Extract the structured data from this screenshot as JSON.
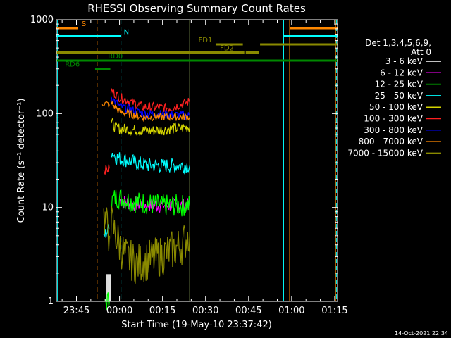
{
  "chart_data": {
    "type": "line",
    "title": "RHESSI Observing Summary Count Rates",
    "xlabel": "Start Time (19-May-10 23:37:42)",
    "ylabel": "Count Rate (s⁻¹ detector⁻¹)",
    "y_scale": "log",
    "ylim": [
      1,
      1000
    ],
    "xlim_minutes_after_2340": [
      -2,
      96
    ],
    "x_tick_labels": [
      "23:45",
      "00:00",
      "00:15",
      "00:30",
      "00:45",
      "01:00",
      "01:15"
    ],
    "x_tick_minutes": [
      5,
      20,
      35,
      50,
      65,
      80,
      95
    ],
    "y_tick_labels": [
      "1",
      "10",
      "100",
      "1000"
    ],
    "y_tick_values": [
      1,
      10,
      100,
      1000
    ],
    "legend_header": [
      "Det 1,3,4,5,6,9,",
      "Att 0"
    ],
    "legend_placement": "right",
    "series": [
      {
        "name": "3 - 6 keV",
        "color": "#ffffff",
        "segments": [
          [
            [
              15.5,
              1.95
            ],
            [
              17.0,
              1.95
            ]
          ]
        ],
        "noise": 0.0,
        "spiky": true
      },
      {
        "name": "6 - 12 keV",
        "color": "#ff00ff",
        "segments": [
          [
            [
              20.0,
              12.0
            ],
            [
              24.0,
              11.0
            ],
            [
              35.0,
              10.5
            ],
            [
              44.5,
              10.5
            ]
          ]
        ],
        "noise": 0.08
      },
      {
        "name": "12 - 25 keV",
        "color": "#00ff00",
        "segments": [
          [
            [
              15.0,
              1.0
            ],
            [
              16.5,
              1.0
            ]
          ],
          [
            [
              17.0,
              11.5
            ],
            [
              19.0,
              13.0
            ],
            [
              25.0,
              11.5
            ],
            [
              35.0,
              10.5
            ],
            [
              44.5,
              10.5
            ]
          ]
        ],
        "noise": 0.12
      },
      {
        "name": "25 - 50 keV",
        "color": "#00ffff",
        "segments": [
          [
            [
              14.5,
              5.0
            ],
            [
              16.5,
              6.0
            ]
          ],
          [
            [
              17.0,
              40.0
            ],
            [
              19.0,
              34.0
            ],
            [
              30.0,
              28.0
            ],
            [
              44.5,
              28.0
            ]
          ]
        ],
        "noise": 0.08
      },
      {
        "name": "50 - 100 keV",
        "color": "#d4d400",
        "segments": [
          [
            [
              17.0,
              80.0
            ],
            [
              19.0,
              70.0
            ],
            [
              30.0,
              65.0
            ],
            [
              44.5,
              72.0
            ]
          ]
        ],
        "noise": 0.06
      },
      {
        "name": "100 - 300 keV",
        "color": "#ff2020",
        "segments": [
          [
            [
              14.5,
              25.0
            ],
            [
              16.5,
              26.0
            ]
          ],
          [
            [
              17.0,
              175.0
            ],
            [
              20.0,
              150.0
            ],
            [
              28.0,
              118.0
            ],
            [
              38.0,
              115.0
            ],
            [
              44.5,
              135.0
            ]
          ]
        ],
        "noise": 0.05
      },
      {
        "name": "300 - 800 keV",
        "color": "#0000ff",
        "segments": [
          [
            [
              17.0,
              150.0
            ],
            [
              20.0,
              120.0
            ],
            [
              28.0,
              100.0
            ],
            [
              44.5,
              95.0
            ]
          ]
        ],
        "noise": 0.05
      },
      {
        "name": "800 - 7000 keV",
        "color": "#ff8800",
        "segments": [
          [
            [
              14.0,
              130.0
            ],
            [
              16.5,
              125.0
            ]
          ],
          [
            [
              17.0,
              130.0
            ],
            [
              20.0,
              105.0
            ],
            [
              28.0,
              92.0
            ],
            [
              44.5,
              92.0
            ]
          ]
        ],
        "noise": 0.04
      },
      {
        "name": "7000 - 15000 keV",
        "color": "#8a8a00",
        "segments": [
          [
            [
              14.5,
              8.0
            ],
            [
              16.5,
              5.0
            ]
          ],
          [
            [
              17.0,
              7.0
            ],
            [
              20.0,
              4.0
            ],
            [
              22.0,
              3.0
            ],
            [
              26.0,
              2.5
            ],
            [
              34.0,
              3.0
            ],
            [
              42.0,
              4.0
            ],
            [
              44.5,
              5.5
            ]
          ]
        ],
        "noise": 0.22
      }
    ],
    "vertical_lines": [
      {
        "x": -1.6,
        "color": "#00ffff",
        "dash": false
      },
      {
        "x": 12.2,
        "color": "#ff8800",
        "dash": true
      },
      {
        "x": 20.5,
        "color": "#00ffff",
        "dash": true
      },
      {
        "x": 44.5,
        "color": "#00ffff",
        "dash": false
      },
      {
        "x": 44.5,
        "color": "#ff8800",
        "dash": false
      },
      {
        "x": 77.2,
        "color": "#00ffff",
        "dash": false
      },
      {
        "x": 79.3,
        "color": "#ff8800",
        "dash": false
      },
      {
        "x": 95.3,
        "color": "#ff8800",
        "dash": false
      },
      {
        "x": 95.6,
        "color": "#00ffff",
        "dash": true
      }
    ],
    "flag_bars": [
      {
        "label": "S",
        "color": "#ff8800",
        "y": 1.0,
        "label_x": 6.8,
        "segments": [
          [
            -2,
            5.5
          ],
          [
            79.3,
            96
          ]
        ]
      },
      {
        "label": "N",
        "color": "#00ffff",
        "y": 2.0,
        "label_x": 21.5,
        "segments": [
          [
            -2,
            20.5
          ],
          [
            77.2,
            96
          ]
        ]
      },
      {
        "label": "FD1",
        "color": "#8a8a00",
        "y": 3.0,
        "label_x": 47.5,
        "segments": [
          [
            53.5,
            63.0
          ],
          [
            69.0,
            96
          ]
        ]
      },
      {
        "label": "FD2",
        "color": "#8a8a00",
        "y": 4.0,
        "label_x": 55.0,
        "segments": [
          [
            -2,
            63.5
          ],
          [
            64.0,
            68.5
          ]
        ]
      },
      {
        "label": "RD0",
        "color": "#008800",
        "y": 5.0,
        "label_x": 16.0,
        "segments": [
          [
            -2,
            96
          ]
        ]
      },
      {
        "label": "RD6",
        "color": "#008800",
        "y": 6.0,
        "label_x": 1.0,
        "segments": [
          [
            11.5,
            16.8
          ]
        ]
      }
    ]
  },
  "footer": {
    "timestamp": "14-Oct-2021 22:34"
  },
  "colors": {
    "background": "#000000",
    "axes": "#ffffff"
  }
}
